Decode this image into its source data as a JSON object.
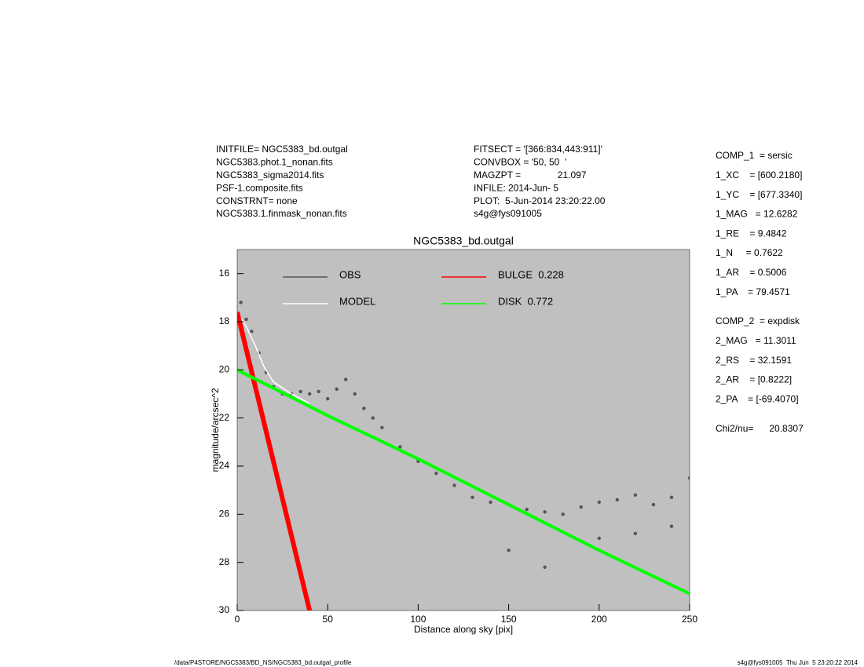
{
  "header": {
    "left": [
      "INITFILE= NGC5383_bd.outgal",
      "NGC5383.phot.1_nonan.fits",
      "NGC5383_sigma2014.fits",
      "PSF-1.composite.fits",
      "CONSTRNT= none",
      "NGC5383.1.finmask_nonan.fits"
    ],
    "middle": [
      "FITSECT = '[366:834,443:911]'",
      "CONVBOX = '50, 50  '",
      "MAGZPT =              21.097",
      "INFILE: 2014-Jun- 5",
      "PLOT:  5-Jun-2014 23:20:22.00",
      "s4g@fys091005"
    ],
    "right": [
      [
        "COMP_1  = sersic",
        "1_XC    = [600.2180]",
        "1_YC    = [677.3340]",
        "1_MAG   = 12.6282",
        "1_RE    = 9.4842",
        "1_N     = 0.7622",
        "1_AR    = 0.5006",
        "1_PA    = 79.4571"
      ],
      [
        "COMP_2  = expdisk",
        "2_MAG   = 11.3011",
        "2_RS    = 32.1591",
        "2_AR    = [0.8222]",
        "2_PA    = [-69.4070]"
      ],
      [
        "Chi2/nu=      20.8307"
      ]
    ]
  },
  "footer": {
    "left": "/data/P4STORE/NGC5383/BD_NS/NGC5383_bd.outgal_profile",
    "right": "s4g@fys091005  Thu Jun  5 23:20:22 2014"
  },
  "chart_data": {
    "type": "line",
    "title": "NGC5383_bd.outgal",
    "x_label": "Distance along sky [pix]",
    "y_label": "magnitude/arcsec^2",
    "xlim": [
      0,
      250
    ],
    "xticks": [
      0,
      50,
      100,
      150,
      200,
      250
    ],
    "ylim": [
      30,
      15
    ],
    "yticks": [
      16,
      18,
      20,
      22,
      24,
      26,
      28,
      30
    ],
    "background": "#c0c0c0",
    "series": [
      {
        "name": "OBS",
        "color": "#555555",
        "style": "points",
        "x": [
          2,
          5,
          8,
          12,
          16,
          20,
          25,
          30,
          35,
          40,
          45,
          50,
          55,
          60,
          65,
          70,
          75,
          80,
          90,
          100,
          110,
          120,
          130,
          140,
          150,
          160,
          170,
          180,
          190,
          200,
          210,
          220,
          230,
          240,
          250,
          150,
          170,
          200,
          220,
          240
        ],
        "values": [
          17.2,
          17.9,
          18.4,
          19.3,
          20.1,
          20.7,
          21.0,
          21.0,
          20.9,
          21.0,
          20.9,
          21.2,
          20.8,
          20.4,
          21.0,
          21.6,
          22.0,
          22.4,
          23.2,
          23.8,
          24.3,
          24.8,
          25.3,
          25.5,
          25.6,
          25.8,
          25.9,
          26.0,
          25.7,
          25.5,
          25.4,
          25.2,
          25.6,
          25.3,
          24.5,
          27.5,
          28.2,
          27.0,
          26.8,
          26.5
        ]
      },
      {
        "name": "MODEL",
        "color": "#ffffff",
        "style": "line",
        "x": [
          0,
          5,
          10,
          15,
          20,
          30,
          40
        ],
        "values": [
          17.6,
          18.2,
          19.0,
          19.9,
          20.5,
          21.0,
          21.4
        ]
      },
      {
        "name": "BULGE  0.228",
        "color": "#ff0000",
        "style": "line",
        "x": [
          0,
          10,
          20,
          30,
          40
        ],
        "values": [
          17.6,
          20.7,
          23.8,
          26.9,
          30.0
        ]
      },
      {
        "name": "DISK  0.772",
        "color": "#00ff00",
        "style": "line",
        "x": [
          0,
          50,
          100,
          150,
          200,
          250
        ],
        "values": [
          20.0,
          21.9,
          23.7,
          25.6,
          27.5,
          29.3
        ]
      }
    ]
  }
}
